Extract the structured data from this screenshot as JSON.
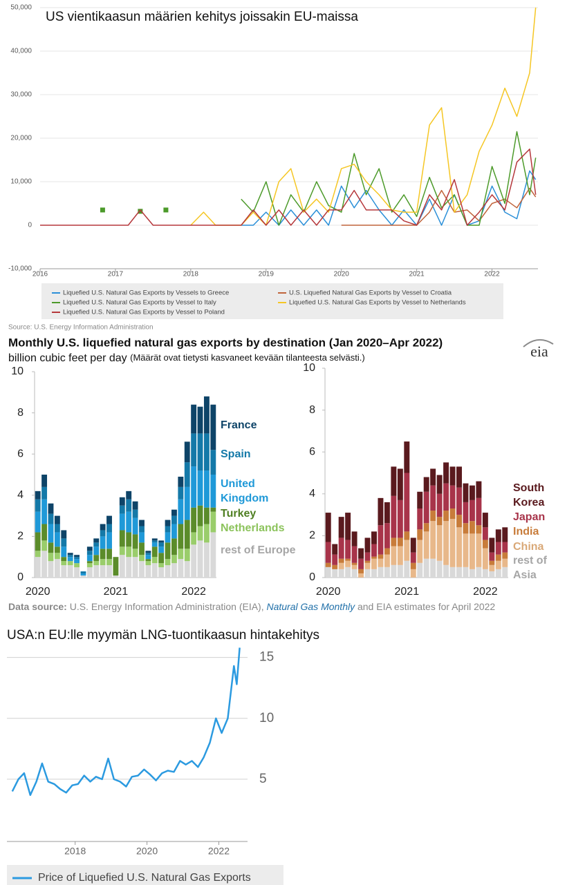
{
  "chart_data": [
    {
      "type": "line",
      "title": "US vientikaasun määrien kehitys joissakin EU-maissa",
      "source": "Source: U.S. Energy Information Administration",
      "x": [
        2016,
        2016.17,
        2016.33,
        2016.5,
        2016.67,
        2016.83,
        2017,
        2017.17,
        2017.33,
        2017.5,
        2017.67,
        2017.83,
        2018,
        2018.17,
        2018.33,
        2018.5,
        2018.67,
        2018.83,
        2019,
        2019.17,
        2019.33,
        2019.5,
        2019.67,
        2019.83,
        2020,
        2020.17,
        2020.33,
        2020.5,
        2020.67,
        2020.83,
        2021,
        2021.17,
        2021.33,
        2021.5,
        2021.67,
        2021.83,
        2022,
        2022.17,
        2022.33,
        2022.5,
        2022.58
      ],
      "xlim": [
        2016,
        2022.61
      ],
      "xticks": [
        2016,
        2017,
        2018,
        2019,
        2020,
        2021,
        2022
      ],
      "ylim": [
        -10000,
        50000
      ],
      "yticks": [
        {
          "value": -10000,
          "label": "-10,000"
        },
        0,
        {
          "value": 10000,
          "label": "10,000"
        },
        {
          "value": 20000,
          "label": "20,000"
        },
        {
          "value": 30000,
          "label": "30,000"
        },
        {
          "value": 40000,
          "label": "40,000"
        },
        {
          "value": 50000,
          "label": "50,000"
        }
      ],
      "grid": true,
      "series": [
        {
          "name": "Liquefied U.S. Natural Gas Exports by Vessels to Greece",
          "color": "#2a8fd8",
          "values": [
            null,
            null,
            null,
            null,
            null,
            null,
            null,
            null,
            null,
            null,
            null,
            null,
            null,
            null,
            null,
            null,
            0,
            0,
            3000,
            0,
            3500,
            0,
            3500,
            0,
            9000,
            4000,
            8000,
            3500,
            0,
            3500,
            0,
            6000,
            0,
            7000,
            0,
            1000,
            9000,
            3000,
            1500,
            12500,
            10500
          ]
        },
        {
          "name": "U.S. Liquefied Natural Gas Exports by Vessel to Croatia",
          "color": "#c0633a",
          "values": [
            null,
            null,
            null,
            null,
            null,
            null,
            null,
            null,
            null,
            null,
            null,
            null,
            null,
            null,
            null,
            null,
            null,
            null,
            null,
            null,
            null,
            null,
            null,
            null,
            0,
            0,
            0,
            0,
            0,
            0,
            0,
            3000,
            8000,
            3000,
            3500,
            1000,
            5000,
            6000,
            4000,
            8500,
            6500
          ]
        },
        {
          "name": "Liquefied U.S. Natural Gas Exports by Vessel to Italy",
          "color": "#4c9a2a",
          "values": [
            null,
            null,
            null,
            null,
            null,
            3500,
            null,
            null,
            3200,
            null,
            3500,
            null,
            null,
            null,
            null,
            null,
            6000,
            3000,
            10000,
            0,
            7000,
            3000,
            10000,
            4500,
            3000,
            16500,
            7000,
            13000,
            3000,
            7000,
            2000,
            11000,
            4000,
            7000,
            0,
            0,
            13500,
            5000,
            21500,
            7000,
            15500
          ]
        },
        {
          "name": "Liquefied U.S. Natural Gas Exports by Vessel to Netherlands",
          "color": "#f5c623",
          "values": [
            null,
            null,
            null,
            null,
            null,
            null,
            null,
            null,
            null,
            null,
            null,
            null,
            0,
            3000,
            0,
            0,
            0,
            3000,
            0,
            10000,
            13000,
            3000,
            6000,
            3000,
            13000,
            14000,
            10000,
            7000,
            3500,
            3000,
            3000,
            23000,
            27000,
            3000,
            7000,
            17000,
            23000,
            31500,
            25000,
            35000,
            50000
          ]
        },
        {
          "name": "Liquefied U.S. Natural Gas Exports by Vessel to Poland",
          "color": "#b5373b",
          "values": [
            0,
            0,
            0,
            0,
            0,
            0,
            0,
            0,
            3500,
            0,
            0,
            0,
            0,
            0,
            0,
            0,
            0,
            3500,
            0,
            3500,
            0,
            3500,
            0,
            3500,
            3500,
            8000,
            3500,
            3500,
            3500,
            1000,
            0,
            7000,
            3500,
            10500,
            0,
            3000,
            7000,
            3500,
            14500,
            17500,
            7000
          ]
        }
      ]
    },
    {
      "type": "bar",
      "stacked": true,
      "title": "Monthly U.S. liquefied natural gas exports by destination (Jan 2020–Apr 2022)",
      "subtitle": "billion cubic feet per day",
      "annotation": "(Määrät ovat tietysti kasvaneet kevään tilanteesta selvästi.)",
      "logo": "eia",
      "source_label": "Data source:",
      "source": "U.S. Energy Information Administration (EIA),",
      "source_publication": "Natural Gas Monthly",
      "source_note": "and EIA estimates for April 2022",
      "categories": [
        "2020",
        null,
        null,
        null,
        null,
        null,
        null,
        null,
        null,
        null,
        null,
        null,
        "2021",
        null,
        null,
        null,
        null,
        null,
        null,
        null,
        null,
        null,
        null,
        null,
        "2022",
        null,
        null,
        null
      ],
      "ylim": [
        0,
        10
      ],
      "yticks": [
        0,
        2,
        4,
        6,
        8,
        10
      ],
      "series": [
        {
          "name": "rest of Europe",
          "color": "#d9d9d9",
          "values": [
            1.0,
            1.3,
            0.8,
            0.9,
            0.6,
            0.6,
            0.5,
            0.1,
            0.5,
            0.6,
            0.6,
            0.6,
            0.1,
            1.1,
            1.0,
            1.0,
            0.8,
            0.6,
            0.7,
            0.5,
            0.6,
            0.7,
            0.9,
            0.8,
            1.6,
            1.8,
            1.7,
            2.2
          ]
        },
        {
          "name": "Netherlands",
          "color": "#9acd6b",
          "values": [
            0.3,
            0.5,
            0.4,
            0.3,
            0.2,
            0.2,
            0.2,
            0,
            0.2,
            0.2,
            0.3,
            0.3,
            0,
            0.4,
            0.5,
            0.4,
            0.3,
            0.2,
            0.3,
            0.2,
            0.3,
            0.4,
            0.5,
            0.6,
            0.6,
            0.7,
            0.9,
            1.0
          ]
        },
        {
          "name": "Turkey",
          "color": "#5b8c2a",
          "values": [
            0.9,
            0.8,
            0.5,
            0.3,
            0.2,
            0,
            0,
            0,
            0.1,
            0.3,
            0.5,
            0.5,
            0.9,
            0.8,
            0.7,
            0.7,
            0.6,
            0.1,
            0.5,
            0.5,
            0.8,
            0.8,
            1.2,
            1.4,
            1.2,
            1.0,
            0.8,
            0.2
          ]
        },
        {
          "name": "United Kingdom",
          "color": "#1f99d8",
          "values": [
            1.0,
            1.2,
            0.9,
            0.7,
            0.5,
            0.2,
            0.2,
            0.1,
            0.3,
            0.4,
            0.6,
            0.8,
            0,
            0.8,
            1.0,
            0.8,
            0.5,
            0.2,
            0.2,
            0.3,
            0.5,
            0.7,
            1.2,
            1.6,
            2.0,
            1.7,
            1.8,
            1.6
          ]
        },
        {
          "name": "Spain",
          "color": "#1479a8",
          "values": [
            0.6,
            0.6,
            0.5,
            0.4,
            0.4,
            0.1,
            0.1,
            0.1,
            0.2,
            0.2,
            0.3,
            0.4,
            0,
            0.4,
            0.6,
            0.4,
            0.3,
            0.1,
            0.1,
            0.2,
            0.3,
            0.4,
            0.6,
            1.2,
            1.6,
            1.8,
            1.8,
            1.2
          ]
        },
        {
          "name": "France",
          "color": "#0e4468",
          "values": [
            0.4,
            0.6,
            0.5,
            0.4,
            0.4,
            0.1,
            0.1,
            0,
            0.2,
            0.2,
            0.3,
            0.4,
            0,
            0.4,
            0.4,
            0.4,
            0.3,
            0.1,
            0.1,
            0.1,
            0.3,
            0.3,
            0.5,
            1.0,
            1.4,
            1.3,
            1.8,
            2.2
          ]
        }
      ]
    },
    {
      "type": "bar",
      "stacked": true,
      "categories": [
        "2020",
        null,
        null,
        null,
        null,
        null,
        null,
        null,
        null,
        null,
        null,
        null,
        "2021",
        null,
        null,
        null,
        null,
        null,
        null,
        null,
        null,
        null,
        null,
        null,
        "2022",
        null,
        null,
        null
      ],
      "ylim": [
        0,
        10
      ],
      "yticks": [
        0,
        2,
        4,
        6,
        8,
        10
      ],
      "series": [
        {
          "name": "rest of Asia",
          "color": "#d9d9d9",
          "values": [
            0.5,
            0.4,
            0.4,
            0.5,
            0.4,
            0,
            0.4,
            0.4,
            0.5,
            0.5,
            0.6,
            0.6,
            0.8,
            0,
            0.7,
            0.9,
            0.9,
            0.8,
            0.6,
            0.5,
            0.5,
            0.5,
            0.4,
            0.5,
            0.4,
            0.3,
            0.4,
            0.5
          ]
        },
        {
          "name": "China",
          "color": "#e8b88a",
          "values": [
            0,
            0,
            0.3,
            0.3,
            0.2,
            0.2,
            0.3,
            0.5,
            0.4,
            0.6,
            0.9,
            0.9,
            1.0,
            0.4,
            1.1,
            1.3,
            1.8,
            1.7,
            2.1,
            2.3,
            1.9,
            1.6,
            1.7,
            1.6,
            1.0,
            0.3,
            0.4,
            0.4
          ]
        },
        {
          "name": "India",
          "color": "#c87c3a",
          "values": [
            0.2,
            0.2,
            0.2,
            0.1,
            0.1,
            0.2,
            0.1,
            0.1,
            0.2,
            0.3,
            0.4,
            0.4,
            0.4,
            0.3,
            0.5,
            0.4,
            0.5,
            0.4,
            0.5,
            0.5,
            0.6,
            0.5,
            0.6,
            0.4,
            0.4,
            0.2,
            0.3,
            0.3
          ]
        },
        {
          "name": "Japan",
          "color": "#a8344a",
          "values": [
            1.0,
            0.5,
            1.0,
            0.9,
            0.8,
            0.5,
            0.4,
            0.6,
            1.4,
            1.2,
            2.0,
            1.8,
            2.8,
            0.5,
            1.0,
            1.5,
            1.2,
            1.1,
            1.3,
            1.1,
            1.3,
            1.0,
            1.0,
            1.3,
            0.6,
            0.4,
            0.6,
            0.5
          ]
        },
        {
          "name": "South Korea",
          "color": "#5a1a1e",
          "values": [
            1.4,
            0.5,
            1.0,
            1.3,
            0.7,
            0.5,
            0.7,
            0.6,
            1.3,
            1.0,
            1.4,
            1.5,
            1.5,
            0.7,
            0.8,
            0.7,
            0.8,
            0.9,
            1.0,
            0.9,
            1.0,
            0.9,
            0.7,
            0.8,
            0.7,
            0.7,
            0.6,
            0.7
          ]
        }
      ]
    },
    {
      "type": "line",
      "title": "USA:n EU:lle myymän LNG-tuontikaasun hintakehitys",
      "x": [
        2016.25,
        2016.42,
        2016.58,
        2016.75,
        2016.92,
        2017.08,
        2017.25,
        2017.42,
        2017.58,
        2017.75,
        2017.92,
        2018.08,
        2018.25,
        2018.42,
        2018.58,
        2018.75,
        2018.92,
        2019.08,
        2019.25,
        2019.42,
        2019.58,
        2019.75,
        2019.92,
        2020.08,
        2020.25,
        2020.42,
        2020.58,
        2020.75,
        2020.92,
        2021.08,
        2021.25,
        2021.42,
        2021.58,
        2021.75,
        2021.92,
        2022.08,
        2022.25,
        2022.42,
        2022.5,
        2022.58
      ],
      "xlim": [
        2016.1,
        2022.8
      ],
      "xticks": [
        2018,
        2020,
        2022
      ],
      "ylim": [
        0,
        16
      ],
      "yticks": [
        5,
        10,
        15
      ],
      "y_axis_position": "right",
      "grid": true,
      "series": [
        {
          "name": "Price of Liquefied U.S. Natural Gas Exports",
          "color": "#2b9ae0",
          "values": [
            4.0,
            5.0,
            5.5,
            3.7,
            4.8,
            6.3,
            4.8,
            4.6,
            4.2,
            3.9,
            4.5,
            4.6,
            5.3,
            4.8,
            5.2,
            5.0,
            6.7,
            5.0,
            4.8,
            4.4,
            5.2,
            5.3,
            5.8,
            5.4,
            4.9,
            5.5,
            5.7,
            5.6,
            6.5,
            6.2,
            6.5,
            6.0,
            6.8,
            8.0,
            10.0,
            8.8,
            10.0,
            14.3,
            12.8,
            15.8
          ]
        }
      ]
    }
  ]
}
